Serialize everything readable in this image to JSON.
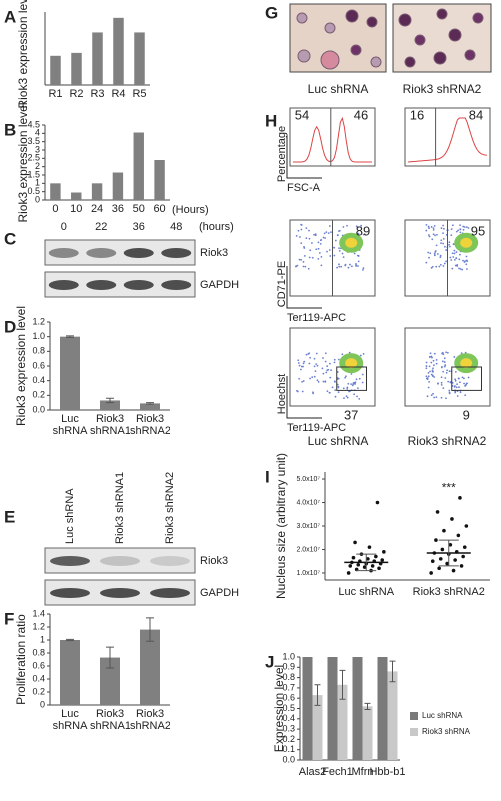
{
  "chart_data": [
    {
      "type": "bar",
      "panel": "A",
      "ylabel": "Riok3 expression level",
      "categories": [
        "R1",
        "R2",
        "R3",
        "R4",
        "R5"
      ],
      "values": [
        1.0,
        1.1,
        1.8,
        2.3,
        1.8
      ],
      "ylim": [
        0,
        2.5
      ],
      "color": "#808080"
    },
    {
      "type": "bar",
      "panel": "B",
      "ylabel": "Riok3 expression level",
      "categories": [
        "0",
        "10",
        "24",
        "36",
        "50",
        "60"
      ],
      "x_unit": "(Hours)",
      "values": [
        1.0,
        0.45,
        1.0,
        1.65,
        4.05,
        2.4
      ],
      "ylim": [
        0,
        4.5
      ],
      "yticks": [
        0,
        0.5,
        1,
        1.5,
        2,
        2.5,
        3,
        3.5,
        4,
        4.5
      ],
      "color": "#808080"
    },
    {
      "type": "bar",
      "panel": "D",
      "ylabel": "Riok3 expression level",
      "categories": [
        "Luc shRNA",
        "Riok3 shRNA1",
        "Riok3 shRNA2"
      ],
      "values": [
        1.0,
        0.13,
        0.09
      ],
      "errors": [
        0.01,
        0.03,
        0.01
      ],
      "ylim": [
        0,
        1.2
      ],
      "yticks": [
        {
          "value": 0,
          "label": "0.0"
        },
        {
          "value": 0.2,
          "label": "0.2"
        },
        {
          "value": 0.4,
          "label": "0.4"
        },
        {
          "value": 0.6,
          "label": "0.6"
        },
        {
          "value": 0.8,
          "label": "0.8"
        },
        {
          "value": 1.0,
          "label": "1.0"
        },
        {
          "value": 1.2,
          "label": "1.2"
        }
      ],
      "color": "#808080"
    },
    {
      "type": "bar",
      "panel": "F",
      "ylabel": "Proliferation ratio",
      "categories": [
        "Luc shRNA",
        "Riok3 shRNA1",
        "Riok3 shRNA2"
      ],
      "values": [
        1.0,
        0.73,
        1.16
      ],
      "errors": [
        0.01,
        0.16,
        0.18
      ],
      "ylim": [
        0,
        1.4
      ],
      "yticks": [
        0,
        0.2,
        0.4,
        0.6,
        0.8,
        1,
        1.2,
        1.4
      ],
      "color": "#808080"
    },
    {
      "type": "strip",
      "panel": "I",
      "ylabel": "Nucleus size (arbitrary unit)",
      "categories": [
        "Luc shRNA",
        "Riok3 shRNA2"
      ],
      "annotation": "***",
      "ylim": [
        7000000.0,
        53000000.0
      ],
      "yticks": [
        {
          "value": 10000000.0,
          "label": "1.0x10⁷"
        },
        {
          "value": 20000000.0,
          "label": "2.0x10⁷"
        },
        {
          "value": 30000000.0,
          "label": "3.0x10⁷"
        },
        {
          "value": 40000000.0,
          "label": "4.0x10⁷"
        },
        {
          "value": 50000000.0,
          "label": "5.0x10⁷"
        }
      ],
      "series": [
        {
          "values": [
            10000000.0,
            11000000.0,
            11500000.0,
            12000000.0,
            12500000.0,
            13000000.0,
            13000000.0,
            13500000.0,
            14000000.0,
            14000000.0,
            14500000.0,
            15000000.0,
            15000000.0,
            15500000.0,
            16000000.0,
            16500000.0,
            17000000.0,
            18000000.0,
            19000000.0,
            21000000.0,
            23000000.0,
            40000000.0
          ],
          "mean": 14500000.0,
          "sd": 3500000.0
        },
        {
          "values": [
            10000000.0,
            11000000.0,
            12000000.0,
            13000000.0,
            14000000.0,
            15000000.0,
            15500000.0,
            16000000.0,
            17000000.0,
            18000000.0,
            18500000.0,
            19000000.0,
            20000000.0,
            21000000.0,
            22000000.0,
            24000000.0,
            26000000.0,
            28000000.0,
            30000000.0,
            33000000.0,
            36000000.0,
            42000000.0
          ],
          "mean": 18500000.0,
          "sd": 5500000.0
        }
      ]
    },
    {
      "type": "bar",
      "panel": "J",
      "ylabel": "Expression level",
      "categories": [
        "Alas2",
        "Fech1",
        "Mfrn",
        "Hbb-b1"
      ],
      "ylim": [
        0,
        1.0
      ],
      "yticks": [
        {
          "value": 0,
          "label": "0.0"
        },
        {
          "value": 0.1,
          "label": "0.1"
        },
        {
          "value": 0.2,
          "label": "0.2"
        },
        {
          "value": 0.3,
          "label": "0.3"
        },
        {
          "value": 0.4,
          "label": "0.4"
        },
        {
          "value": 0.5,
          "label": "0.5"
        },
        {
          "value": 0.6,
          "label": "0.6"
        },
        {
          "value": 0.7,
          "label": "0.7"
        },
        {
          "value": 0.8,
          "label": "0.8"
        },
        {
          "value": 0.9,
          "label": "0.9"
        },
        {
          "value": 1.0,
          "label": "1.0"
        }
      ],
      "series": [
        {
          "name": "Luc shRNA",
          "color": "#7a7a7a",
          "values": [
            1.0,
            1.0,
            1.0,
            1.0
          ]
        },
        {
          "name": "Riok3 shRNA",
          "color": "#c8c8c8",
          "values": [
            0.63,
            0.73,
            0.52,
            0.86
          ],
          "errors": [
            0.1,
            0.14,
            0.03,
            0.1
          ]
        }
      ]
    }
  ],
  "blots": [
    {
      "panel": "C",
      "lanes": [
        "0",
        "22",
        "36",
        "48"
      ],
      "unit": "(hours)",
      "rows": [
        "Riok3",
        "GAPDH"
      ]
    },
    {
      "panel": "E",
      "lanes": [
        "Luc shRNA",
        "Riok3 shRNA1",
        "Riok3 shRNA2"
      ],
      "rows": [
        "Riok3",
        "GAPDH"
      ]
    }
  ],
  "microscopy": {
    "panel": "G",
    "captions": [
      "Luc shRNA",
      "Riok3 shRNA2"
    ]
  },
  "flow": {
    "panel": "H",
    "captions": [
      "Luc shRNA",
      "Riok3 shRNA2"
    ],
    "rows": [
      {
        "ylabel": "Percentage",
        "xlabel": "FSC-A",
        "gates": [
          [
            54,
            46
          ],
          [
            16,
            84
          ]
        ]
      },
      {
        "ylabel": "CD71-PE",
        "xlabel": "Ter119-APC",
        "gates": [
          [
            89
          ],
          [
            95
          ]
        ]
      },
      {
        "ylabel": "Hoechst",
        "xlabel": "Ter119-APC",
        "gates": [
          [
            37
          ],
          [
            9
          ]
        ]
      }
    ]
  }
}
